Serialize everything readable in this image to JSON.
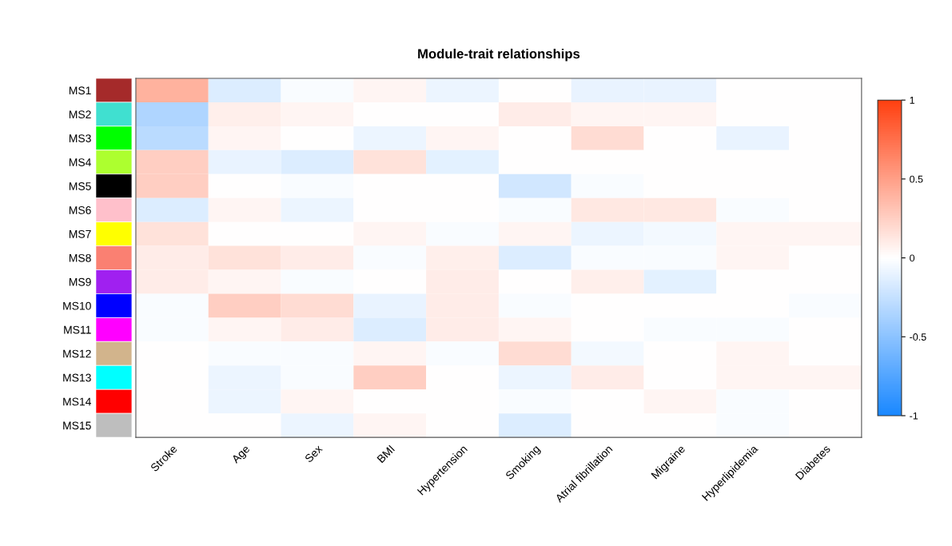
{
  "chart_data": {
    "type": "heatmap",
    "title": "Module-trait relationships",
    "categories": [
      "Stroke",
      "Age",
      "Sex",
      "BMI",
      "Hypertension",
      "Smoking",
      "Atrial fibrillation",
      "Migraine",
      "Hyperlipidemia",
      "Diabetes"
    ],
    "y_categories": [
      "MS1",
      "MS2",
      "MS3",
      "MS4",
      "MS5",
      "MS6",
      "MS7",
      "MS8",
      "MS9",
      "MS10",
      "MS11",
      "MS12",
      "MS13",
      "MS14",
      "MS15"
    ],
    "cells": [
      [
        0.4,
        -0.15,
        -0.03,
        0.05,
        -0.08,
        0,
        -0.1,
        -0.1,
        0,
        0
      ],
      [
        -0.35,
        0.08,
        0.05,
        0,
        0,
        0.1,
        0.05,
        0.05,
        0,
        0
      ],
      [
        -0.3,
        0.05,
        0,
        -0.08,
        0.05,
        0,
        0.18,
        0,
        -0.1,
        0
      ],
      [
        0.25,
        -0.1,
        -0.15,
        0.15,
        -0.12,
        0,
        0,
        0,
        0,
        0
      ],
      [
        0.25,
        0,
        -0.03,
        0,
        0,
        -0.2,
        -0.03,
        0,
        0,
        0
      ],
      [
        -0.15,
        0.05,
        -0.08,
        0,
        0,
        -0.03,
        0.12,
        0.12,
        -0.03,
        0
      ],
      [
        0.15,
        0,
        0,
        0.05,
        -0.03,
        0.05,
        -0.08,
        -0.05,
        0.05,
        0.05
      ],
      [
        0.1,
        0.15,
        0.1,
        -0.03,
        0.08,
        -0.15,
        -0.03,
        -0.03,
        0.05,
        0
      ],
      [
        0.1,
        0.05,
        -0.03,
        0,
        0.1,
        0,
        0.08,
        -0.12,
        0,
        0
      ],
      [
        -0.03,
        0.25,
        0.18,
        -0.1,
        0.1,
        -0.03,
        0,
        0,
        0,
        -0.03
      ],
      [
        -0.03,
        0.05,
        0.1,
        -0.15,
        0.1,
        0.05,
        0,
        -0.03,
        -0.03,
        0
      ],
      [
        0,
        -0.03,
        -0.03,
        0.05,
        -0.03,
        0.18,
        -0.05,
        0,
        0.05,
        0
      ],
      [
        0,
        -0.08,
        -0.03,
        0.25,
        0,
        -0.08,
        0.1,
        0,
        0.05,
        0.05
      ],
      [
        0,
        -0.08,
        0.05,
        0,
        0,
        -0.03,
        0,
        0.05,
        -0.03,
        0
      ],
      [
        0,
        0,
        -0.08,
        0.05,
        0,
        -0.15,
        0,
        0,
        -0.03,
        0
      ]
    ],
    "clim": [
      -1,
      1
    ],
    "cticks": [
      -1,
      -0.5,
      0,
      0.5,
      1
    ]
  }
}
